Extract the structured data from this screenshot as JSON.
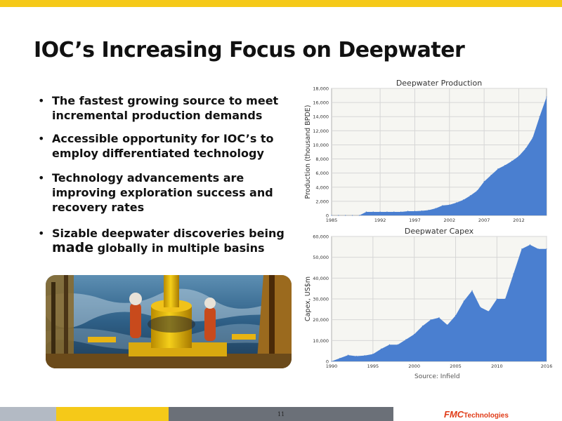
{
  "slide": {
    "title": "IOC’s Increasing Focus on Deepwater",
    "page_number": "11",
    "bullets": [
      {
        "text": "The fastest growing source to meet incremental production demands"
      },
      {
        "text": "Accessible opportunity for IOC’s to employ differentiated technology"
      },
      {
        "text": "Technology advancements are improving exploration success and recovery rates"
      },
      {
        "lead": "Sizable deepwater discoveries being",
        "big": "made",
        "tail": " globally in multiple basins"
      }
    ],
    "bullet_marker": "•",
    "source": "Source: Infield",
    "logo": {
      "brand": "FMC",
      "suffix": "Technologies"
    }
  },
  "colors": {
    "accent_yellow": "#f5c918",
    "footer_gray": "#b3bac4",
    "footer_dark": "#6b7078",
    "chart_fill": "#4a7fd0",
    "logo_red": "#e03b17"
  },
  "chart_data": [
    {
      "type": "area",
      "title": "Deepwater Production",
      "xlabel": "",
      "ylabel": "Production (thousand BPDE)",
      "xlim": [
        1985,
        2016
      ],
      "ylim": [
        0,
        18000
      ],
      "x_ticks": [
        "1985",
        "1992",
        "1997",
        "2002",
        "2007",
        "2012"
      ],
      "y_ticks": [
        "0",
        "2,000",
        "4,000",
        "6,000",
        "8,000",
        "10,000",
        "12,000",
        "14,000",
        "16,000",
        "18,000"
      ],
      "grid": true,
      "x": [
        1985,
        1986,
        1987,
        1988,
        1989,
        1990,
        1991,
        1992,
        1993,
        1994,
        1995,
        1996,
        1997,
        1998,
        1999,
        2000,
        2001,
        2002,
        2003,
        2004,
        2005,
        2006,
        2007,
        2008,
        2009,
        2010,
        2011,
        2012,
        2013,
        2014,
        2015,
        2016
      ],
      "values": [
        0,
        0,
        0,
        0,
        0,
        500,
        500,
        500,
        500,
        500,
        500,
        600,
        600,
        650,
        750,
        1000,
        1400,
        1500,
        1800,
        2200,
        2800,
        3500,
        4800,
        5700,
        6600,
        7100,
        7700,
        8400,
        9500,
        11000,
        14000,
        16800
      ]
    },
    {
      "type": "area",
      "title": "Deepwater Capex",
      "xlabel": "",
      "ylabel": "Capex, US$m",
      "xlim": [
        1990,
        2016
      ],
      "ylim": [
        0,
        60000
      ],
      "x_ticks": [
        "1990",
        "1995",
        "2000",
        "2005",
        "2010",
        "2016"
      ],
      "y_ticks": [
        "0",
        "10,000",
        "20,000",
        "30,000",
        "40,000",
        "50,000",
        "60,000"
      ],
      "grid": true,
      "x": [
        1990,
        1991,
        1992,
        1993,
        1994,
        1995,
        1996,
        1997,
        1998,
        1999,
        2000,
        2001,
        2002,
        2003,
        2004,
        2005,
        2006,
        2007,
        2008,
        2009,
        2010,
        2011,
        2012,
        2013,
        2014,
        2015,
        2016
      ],
      "values": [
        0,
        1500,
        3000,
        2500,
        2800,
        3500,
        6000,
        8000,
        8000,
        10500,
        13000,
        17000,
        20000,
        21000,
        17500,
        22000,
        29000,
        34000,
        26000,
        24000,
        30000,
        30000,
        42000,
        54000,
        56000,
        54000,
        54000
      ]
    }
  ]
}
